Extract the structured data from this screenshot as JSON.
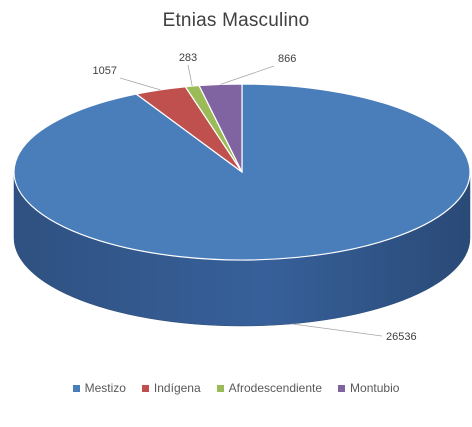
{
  "chart_data": {
    "type": "pie",
    "title": "Etnias Masculino",
    "categories": [
      "Mestizo",
      "Indígena",
      "Afrodescendiente",
      "Montubio"
    ],
    "values": [
      26536,
      1057,
      283,
      866
    ],
    "data_labels": [
      "26536",
      "1057",
      "283",
      "866"
    ],
    "colors": [
      "#4a7ebb",
      "#c0504d",
      "#9bbb59",
      "#8064a2"
    ],
    "style": "3d",
    "legend_position": "bottom"
  }
}
